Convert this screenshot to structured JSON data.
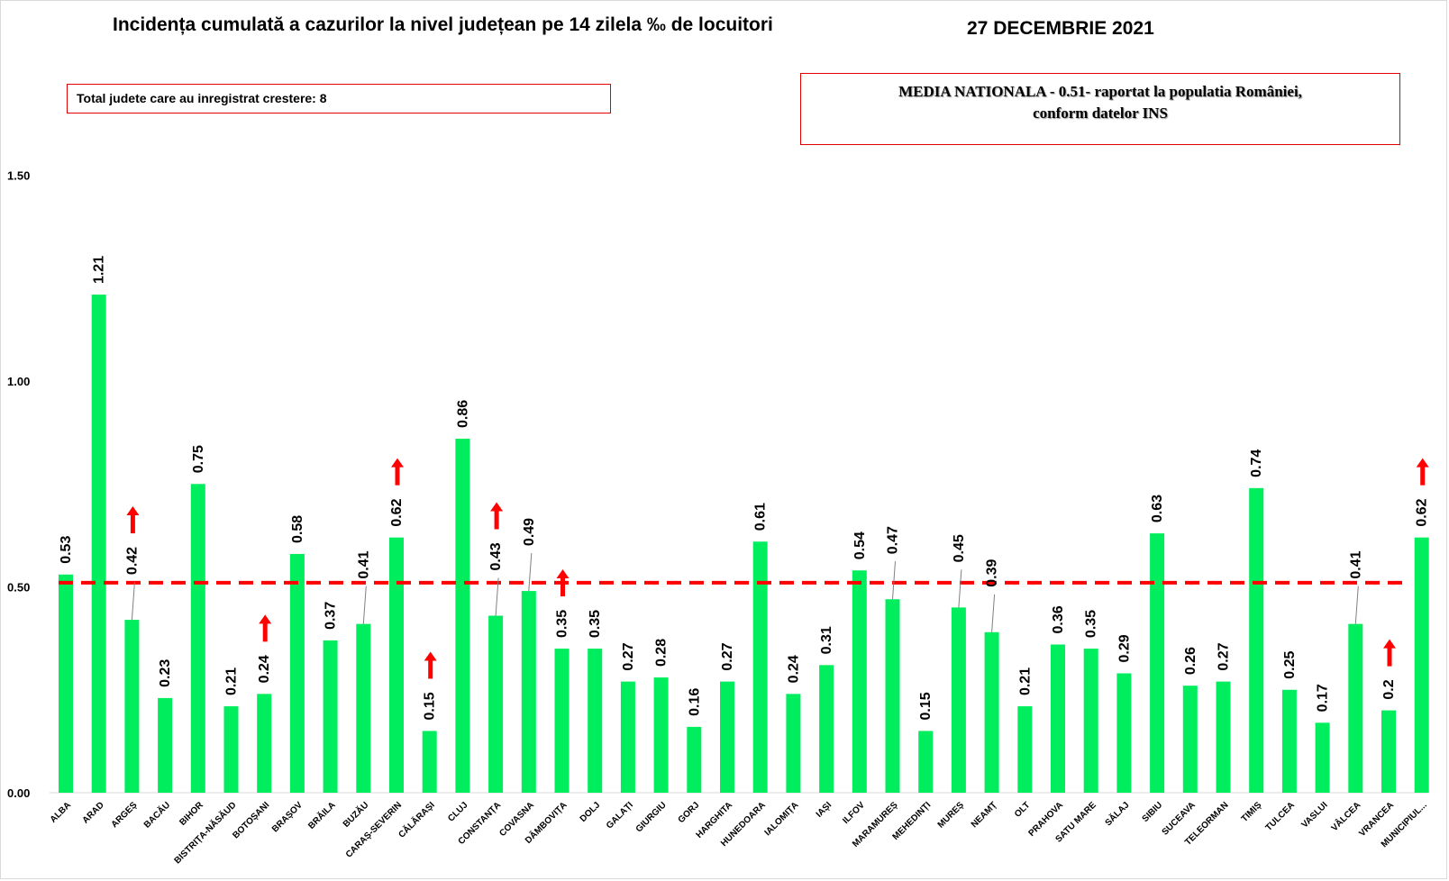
{
  "chart_data": {
    "type": "bar",
    "title": "Incidența cumulată a cazurilor la nivel județean pe 14 zilela ‰ de locuitori",
    "date": "27 DECEMBRIE 2021",
    "xlabel": "",
    "ylabel": "",
    "ylim": [
      0,
      1.65
    ],
    "y_ticks": [
      "0.00",
      "0.50",
      "1.00",
      "1.50"
    ],
    "y_tick_values": [
      0,
      0.5,
      1.0,
      1.5
    ],
    "grid": false,
    "legend": "none",
    "bar_color": "#00ee5e",
    "reference_line": {
      "value": 0.51,
      "style": "dashed",
      "color": "#ff0000"
    },
    "arrow_color": "#ff0000",
    "increase_note": "Total judete care au inregistrat crestere: 8",
    "national_note_line1": "MEDIA NATIONALA   - 0.51-  raportat la populatia României,",
    "national_note_line2": "conform datelor INS",
    "categories": [
      "ALBA",
      "ARAD",
      "ARGEȘ",
      "BACĂU",
      "BIHOR",
      "BISTRIȚA-NĂSĂUD",
      "BOTOȘANI",
      "BRAȘOV",
      "BRĂILA",
      "BUZĂU",
      "CARAȘ-SEVERIN",
      "CĂLĂRAȘI",
      "CLUJ",
      "CONSTANȚA",
      "COVASNA",
      "DÂMBOVIȚA",
      "DOLJ",
      "GALAȚI",
      "GIURGIU",
      "GORJ",
      "HARGHITA",
      "HUNEDOARA",
      "IALOMIȚA",
      "IAȘI",
      "ILFOV",
      "MARAMUREȘ",
      "MEHEDINȚI",
      "MUREȘ",
      "NEAMȚ",
      "OLT",
      "PRAHOVA",
      "SATU MARE",
      "SĂLAJ",
      "SIBIU",
      "SUCEAVA",
      "TELEORMAN",
      "TIMIȘ",
      "TULCEA",
      "VASLUI",
      "VÂLCEA",
      "VRANCEA",
      "MUNICIPIUL..."
    ],
    "values": [
      0.53,
      1.21,
      0.42,
      0.23,
      0.75,
      0.21,
      0.24,
      0.58,
      0.37,
      0.41,
      0.62,
      0.15,
      0.86,
      0.43,
      0.49,
      0.35,
      0.35,
      0.27,
      0.28,
      0.16,
      0.27,
      0.61,
      0.24,
      0.31,
      0.54,
      0.47,
      0.15,
      0.45,
      0.39,
      0.21,
      0.36,
      0.35,
      0.29,
      0.63,
      0.26,
      0.27,
      0.74,
      0.25,
      0.17,
      0.41,
      0.2,
      0.62
    ],
    "value_labels": [
      "0.53",
      "1.21",
      "0.42",
      "0.23",
      "0.75",
      "0.21",
      "0.24",
      "0.58",
      "0.37",
      "0.41",
      "0.62",
      "0.15",
      "0.86",
      "0.43",
      "0.49",
      "0.35",
      "0.35",
      "0.27",
      "0.28",
      "0.16",
      "0.27",
      "0.61",
      "0.24",
      "0.31",
      "0.54",
      "0.47",
      "0.15",
      "0.45",
      "0.39",
      "0.21",
      "0.36",
      "0.35",
      "0.29",
      "0.63",
      "0.26",
      "0.27",
      "0.74",
      "0.25",
      "0.17",
      "0.41",
      "0.2",
      "0.62"
    ],
    "increased": [
      "ARGEȘ",
      "BOTOȘANI",
      "CARAȘ-SEVERIN",
      "CĂLĂRAȘI",
      "CONSTANȚA",
      "DÂMBOVIȚA",
      "VRANCEA",
      "MUNICIPIUL..."
    ]
  }
}
